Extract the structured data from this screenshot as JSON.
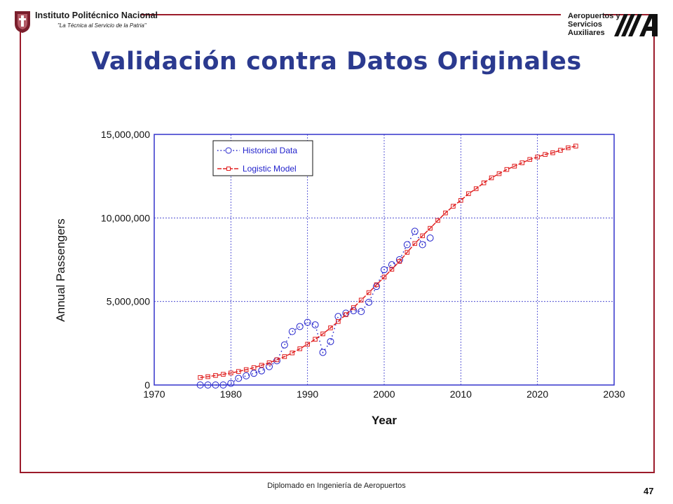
{
  "header": {
    "institution_name": "Instituto Politécnico Nacional",
    "institution_motto": "\"La Técnica al Servicio de la Patria\"",
    "company_line1": "Aeropuertos y",
    "company_line2": "Servicios",
    "company_line3": "Auxiliares",
    "company_logo_icon": "asa-logo-icon",
    "institution_logo_icon": "ipn-seal-icon"
  },
  "title": "Validación contra Datos Originales",
  "footer": {
    "course": "Diplomado en Ingeniería de Aeropuertos",
    "page_number": "47"
  },
  "colors": {
    "frame": "#9b1b2a",
    "title": "#2b3a8f",
    "axis": "#3333cc",
    "grid": "#3333cc",
    "historical": "#2222cc",
    "model": "#e02020"
  },
  "chart_data": {
    "type": "line",
    "title": "",
    "xlabel": "Year",
    "ylabel": "Annual Passengers",
    "xlim": [
      1970,
      2030
    ],
    "ylim": [
      0,
      15000000
    ],
    "x_ticks": [
      1970,
      1980,
      1990,
      2000,
      2010,
      2020,
      2030
    ],
    "y_ticks": [
      0,
      5000000,
      10000000,
      15000000
    ],
    "y_tick_labels": [
      "0",
      "5,000,000",
      "10,000,000",
      "15,000,000"
    ],
    "grid": true,
    "legend_position": "top-left",
    "series": [
      {
        "name": "Historical Data",
        "line_style": "dotted",
        "marker": "circle",
        "color": "#2222cc",
        "x": [
          1976,
          1977,
          1978,
          1979,
          1980,
          1981,
          1982,
          1983,
          1984,
          1985,
          1986,
          1987,
          1988,
          1989,
          1990,
          1991,
          1992,
          1993,
          1994,
          1995,
          1996,
          1997,
          1998,
          1999,
          2000,
          2001,
          2002,
          2003,
          2004,
          2005,
          2006
        ],
        "y": [
          0,
          0,
          0,
          0,
          100000,
          400000,
          550000,
          700000,
          850000,
          1100000,
          1450000,
          2400000,
          3200000,
          3500000,
          3750000,
          3600000,
          1950000,
          2600000,
          4100000,
          4300000,
          4450000,
          4400000,
          4950000,
          5900000,
          6900000,
          7200000,
          7500000,
          8400000,
          9200000,
          8400000,
          8800000
        ]
      },
      {
        "name": "Logistic Model",
        "line_style": "dashed",
        "marker": "square",
        "color": "#e02020",
        "x": [
          1976,
          1977,
          1978,
          1979,
          1980,
          1981,
          1982,
          1983,
          1984,
          1985,
          1986,
          1987,
          1988,
          1989,
          1990,
          1991,
          1992,
          1993,
          1994,
          1995,
          1996,
          1997,
          1998,
          1999,
          2000,
          2001,
          2002,
          2003,
          2004,
          2005,
          2006,
          2007,
          2008,
          2009,
          2010,
          2011,
          2012,
          2013,
          2014,
          2015,
          2016,
          2017,
          2018,
          2019,
          2020,
          2021,
          2022,
          2023,
          2024,
          2025
        ],
        "y": [
          450000,
          500000,
          570000,
          640000,
          720000,
          810000,
          920000,
          1040000,
          1180000,
          1330000,
          1510000,
          1700000,
          1920000,
          2170000,
          2440000,
          2740000,
          3060000,
          3420000,
          3800000,
          4210000,
          4630000,
          5080000,
          5530000,
          6000000,
          6460000,
          6930000,
          7400000,
          7940000,
          8470000,
          8930000,
          9380000,
          9850000,
          10300000,
          10700000,
          11050000,
          11450000,
          11750000,
          12100000,
          12400000,
          12650000,
          12900000,
          13100000,
          13300000,
          13500000,
          13650000,
          13800000,
          13900000,
          14050000,
          14200000,
          14300000
        ]
      }
    ]
  }
}
